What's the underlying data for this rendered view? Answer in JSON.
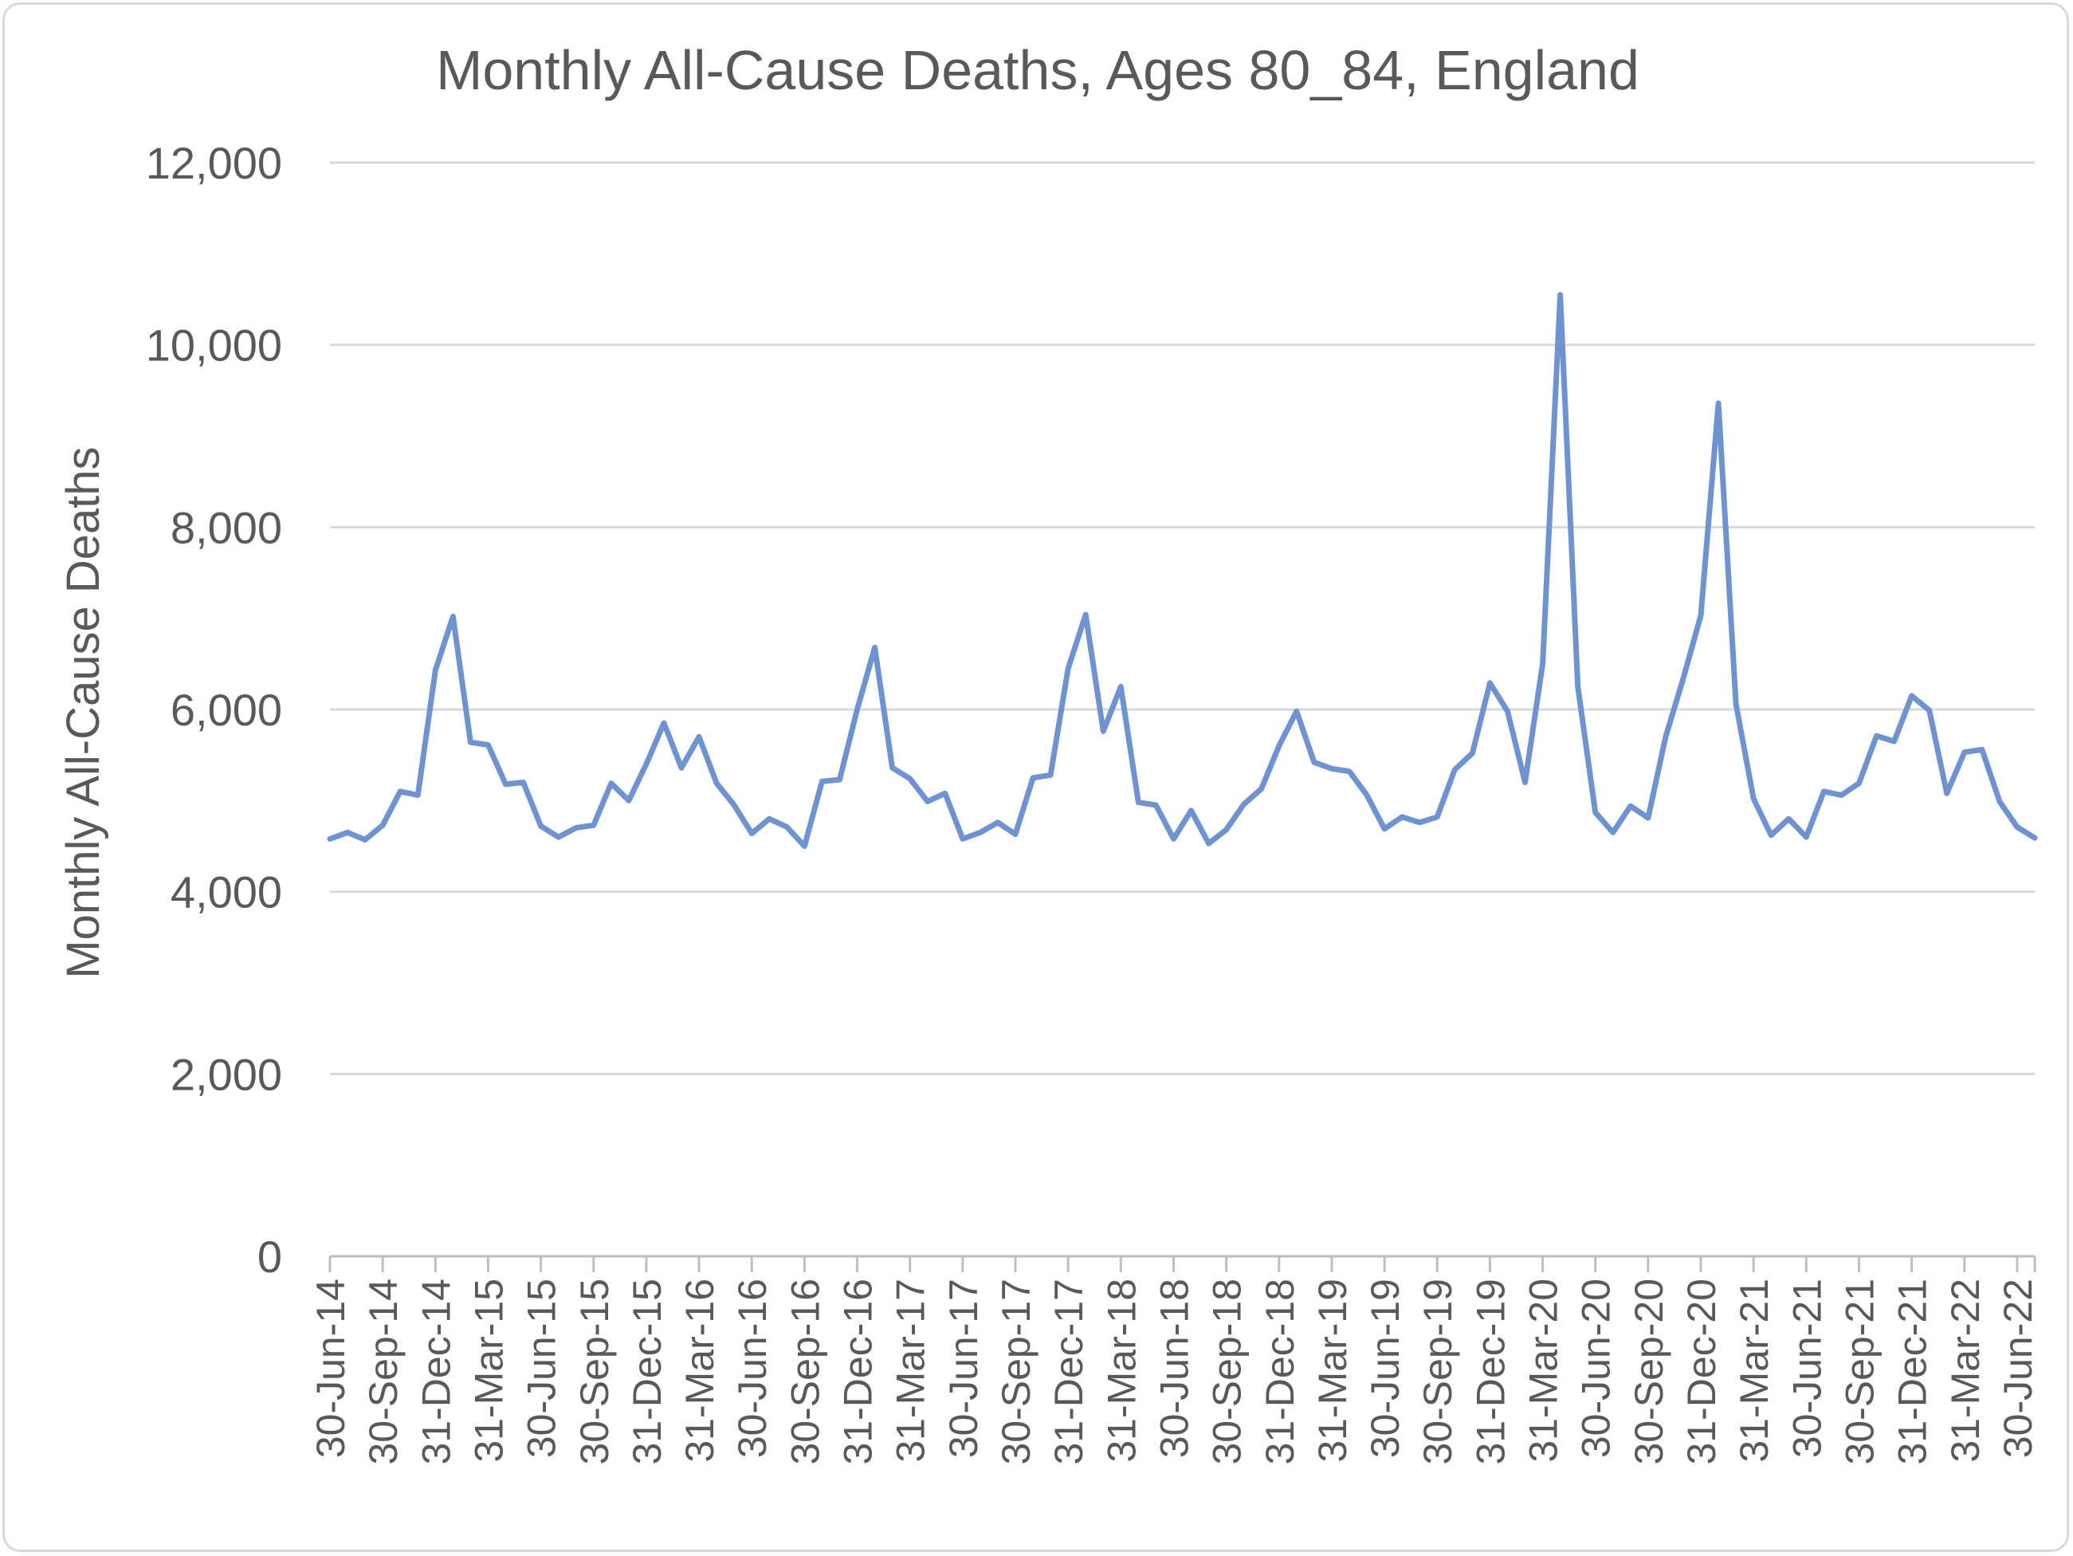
{
  "chart_data": {
    "type": "line",
    "title": "Monthly All-Cause Deaths, Ages 80_84, England",
    "xlabel": "",
    "ylabel": "Monthly All-Cause Deaths",
    "ylim": [
      0,
      12000
    ],
    "yticks": [
      0,
      2000,
      4000,
      6000,
      8000,
      10000,
      12000
    ],
    "ytick_labels": [
      "0",
      "2,000",
      "4,000",
      "6,000",
      "8,000",
      "10,000",
      "12,000"
    ],
    "grid": true,
    "legend": "none",
    "line_color": "#6f93d1",
    "x_tick_labels": [
      "30-Jun-14",
      "30-Sep-14",
      "31-Dec-14",
      "31-Mar-15",
      "30-Jun-15",
      "30-Sep-15",
      "31-Dec-15",
      "31-Mar-16",
      "30-Jun-16",
      "30-Sep-16",
      "31-Dec-16",
      "31-Mar-17",
      "30-Jun-17",
      "30-Sep-17",
      "31-Dec-17",
      "31-Mar-18",
      "30-Jun-18",
      "30-Sep-18",
      "31-Dec-18",
      "31-Mar-19",
      "30-Jun-19",
      "30-Sep-19",
      "31-Dec-19",
      "31-Mar-20",
      "30-Jun-20",
      "30-Sep-20",
      "31-Dec-20",
      "31-Mar-21",
      "30-Jun-21",
      "30-Sep-21",
      "31-Dec-21",
      "31-Mar-22",
      "30-Jun-22"
    ],
    "series": [
      {
        "values": [
          4580,
          4650,
          4570,
          4730,
          5100,
          5060,
          6430,
          7020,
          5640,
          5610,
          5180,
          5200,
          4720,
          4600,
          4700,
          4730,
          5190,
          5000,
          5400,
          5850,
          5360,
          5700,
          5190,
          4950,
          4640,
          4800,
          4710,
          4500,
          5210,
          5230,
          6000,
          6680,
          5360,
          5240,
          4990,
          5080,
          4580,
          4650,
          4760,
          4630,
          5250,
          5280,
          6450,
          7040,
          5760,
          6250,
          4980,
          4950,
          4580,
          4890,
          4530,
          4680,
          4960,
          5130,
          5600,
          5980,
          5420,
          5350,
          5320,
          5060,
          4690,
          4820,
          4760,
          4820,
          5340,
          5520,
          6290,
          5980,
          5200,
          6500,
          10550,
          6250,
          4870,
          4650,
          4940,
          4810,
          5700,
          6340,
          7030,
          9360,
          6060,
          5020,
          4620,
          4800,
          4600,
          5100,
          5060,
          5190,
          5710,
          5650,
          6150,
          5990,
          5080,
          5530,
          5560,
          4990,
          4710,
          4590
        ]
      }
    ]
  }
}
